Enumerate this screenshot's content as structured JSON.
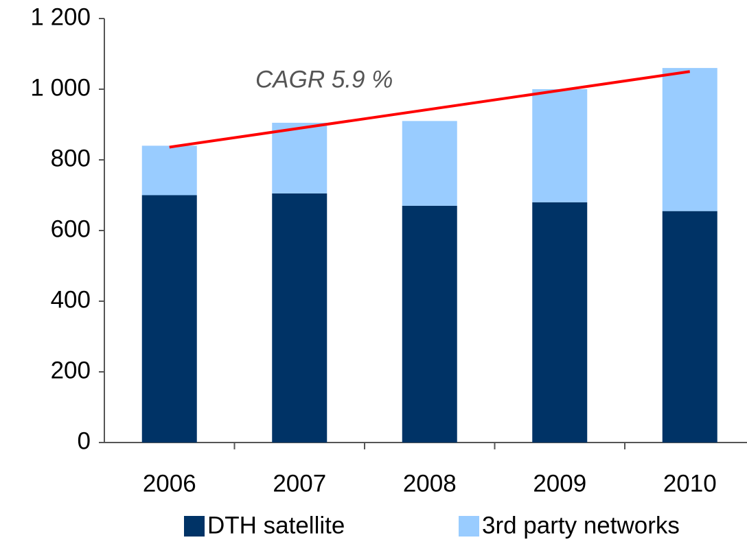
{
  "chart_data": {
    "type": "bar",
    "stacked": true,
    "categories": [
      "2006",
      "2007",
      "2008",
      "2009",
      "2010"
    ],
    "series": [
      {
        "name": "DTH satellite",
        "color": "#003366",
        "values": [
          700,
          705,
          670,
          680,
          655
        ]
      },
      {
        "name": "3rd party networks",
        "color": "#99ccff",
        "values": [
          140,
          200,
          240,
          320,
          405
        ]
      }
    ],
    "trend_line": {
      "color": "#ff0000",
      "values": [
        836,
        1050
      ]
    },
    "annotation": "CAGR 5.9 %",
    "ylim": [
      0,
      1200
    ],
    "yticks": [
      0,
      200,
      400,
      600,
      800,
      {
        "value": 1000,
        "label": "1 000"
      },
      {
        "value": 1200,
        "label": "1 200"
      }
    ],
    "grid": false
  }
}
